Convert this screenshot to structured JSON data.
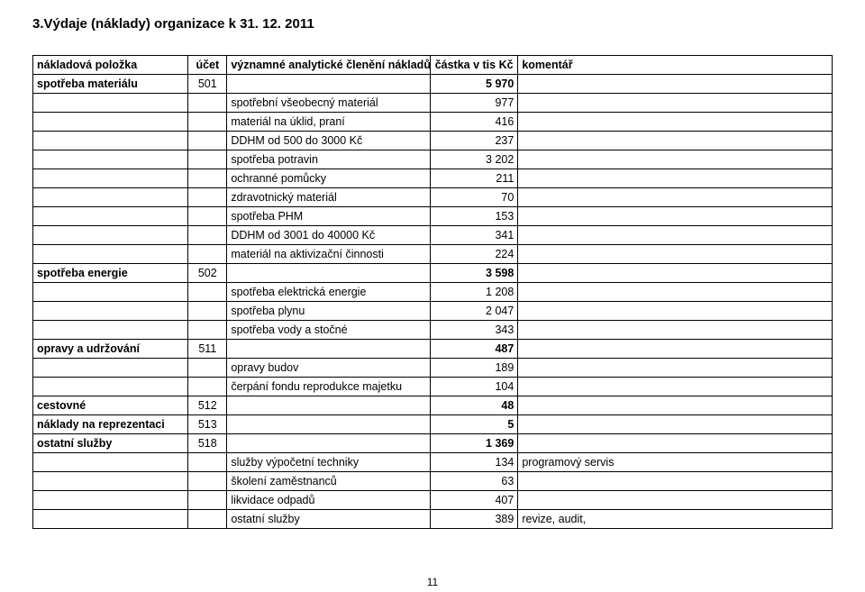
{
  "heading": "3.Výdaje (náklady) organizace k 31. 12. 2011",
  "pageNumber": "11",
  "header": {
    "c1": "nákladová položka",
    "c2": "účet",
    "c3": "významné analytické členění nákladů",
    "c4": "částka v tis Kč",
    "c5": "komentář"
  },
  "rows": [
    {
      "c1": "spotřeba materiálu",
      "bold1": true,
      "c2": "501",
      "c3": "",
      "c4": "5 970",
      "bold4": true,
      "c5": ""
    },
    {
      "c1": "",
      "c2": "",
      "c3": "spotřební všeobecný materiál",
      "c4": "977",
      "c5": ""
    },
    {
      "c1": "",
      "c2": "",
      "c3": "materiál na úklid, praní",
      "c4": "416",
      "c5": ""
    },
    {
      "c1": "",
      "c2": "",
      "c3": "DDHM od 500 do 3000 Kč",
      "c4": "237",
      "c5": ""
    },
    {
      "c1": "",
      "c2": "",
      "c3": "spotřeba potravin",
      "c4": "3 202",
      "c5": ""
    },
    {
      "c1": "",
      "c2": "",
      "c3": "ochranné pomůcky",
      "c4": "211",
      "c5": ""
    },
    {
      "c1": "",
      "c2": "",
      "c3": "zdravotnický materiál",
      "c4": "70",
      "c5": ""
    },
    {
      "c1": "",
      "c2": "",
      "c3": "spotřeba PHM",
      "c4": "153",
      "c5": ""
    },
    {
      "c1": "",
      "c2": "",
      "c3": "DDHM od 3001 do 40000 Kč",
      "c4": "341",
      "c5": ""
    },
    {
      "c1": "",
      "c2": "",
      "c3": "materiál na aktivizační činnosti",
      "c4": "224",
      "c5": ""
    },
    {
      "c1": "spotřeba energie",
      "bold1": true,
      "c2": "502",
      "c3": "",
      "c4": "3 598",
      "bold4": true,
      "c5": ""
    },
    {
      "c1": "",
      "c2": "",
      "c3": "spotřeba elektrická energie",
      "c4": "1 208",
      "c5": ""
    },
    {
      "c1": "",
      "c2": "",
      "c3": "spotřeba plynu",
      "c4": "2 047",
      "c5": ""
    },
    {
      "c1": "",
      "c2": "",
      "c3": "spotřeba vody a stočné",
      "c4": "343",
      "c5": ""
    },
    {
      "c1": "opravy a udržování",
      "bold1": true,
      "c2": "511",
      "c3": "",
      "c4": "487",
      "bold4": true,
      "c5": ""
    },
    {
      "c1": "",
      "c2": "",
      "c3": "opravy budov",
      "c4": "189",
      "c5": ""
    },
    {
      "c1": "",
      "c2": "",
      "c3": "čerpání fondu reprodukce majetku",
      "c4": "104",
      "c5": ""
    },
    {
      "c1": "cestovné",
      "bold1": true,
      "c2": "512",
      "c3": "",
      "c4": "48",
      "bold4": true,
      "c5": ""
    },
    {
      "c1": "náklady na reprezentaci",
      "bold1": true,
      "c2": "513",
      "c3": "",
      "c4": "5",
      "bold4": true,
      "c5": ""
    },
    {
      "c1": "ostatní služby",
      "bold1": true,
      "c2": "518",
      "c3": "",
      "c4": "1 369",
      "bold4": true,
      "c5": ""
    },
    {
      "c1": "",
      "c2": "",
      "c3": "služby výpočetní techniky",
      "c4": "134",
      "c5": "programový servis"
    },
    {
      "c1": "",
      "c2": "",
      "c3": "školení zaměstnanců",
      "c4": "63",
      "c5": ""
    },
    {
      "c1": "",
      "c2": "",
      "c3": "likvidace odpadů",
      "c4": "407",
      "c5": ""
    },
    {
      "c1": "",
      "c2": "",
      "c3": "ostatní služby",
      "c4": "389",
      "c5": "revize, audit,"
    }
  ]
}
